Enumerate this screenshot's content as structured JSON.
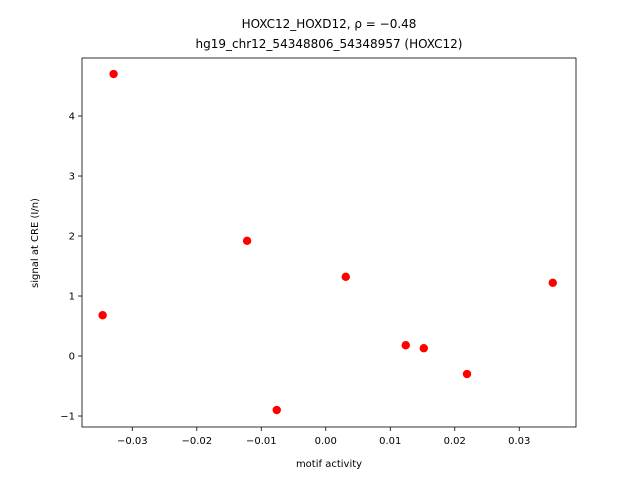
{
  "chart_data": {
    "type": "scatter",
    "title": "HOXC12_HOXD12, ρ = −0.48",
    "subtitle": "hg19_chr12_54348806_54348957 (HOXC12)",
    "x_label": "motif activity",
    "y_label": "signal at CRE (I/n)",
    "color": "#ff0000",
    "x": [
      -0.0329,
      -0.0346,
      -0.0122,
      -0.0076,
      0.0031,
      0.0124,
      0.0152,
      0.0219,
      0.0352
    ],
    "y": [
      4.7,
      0.68,
      1.92,
      -0.9,
      1.32,
      0.18,
      0.13,
      -0.3,
      1.22
    ],
    "xlim": [
      -0.0378,
      0.0388
    ],
    "ylim": [
      -1.183,
      4.967
    ],
    "xticks": [
      {
        "value": -0.03,
        "label": "−0.03"
      },
      {
        "value": -0.02,
        "label": "−0.02"
      },
      {
        "value": -0.01,
        "label": "−0.01"
      },
      {
        "value": 0,
        "label": "0.00"
      },
      0.01,
      0.02,
      0.03
    ],
    "yticks": [
      {
        "value": -1,
        "label": "−1"
      },
      0,
      1,
      2,
      3,
      4
    ]
  }
}
